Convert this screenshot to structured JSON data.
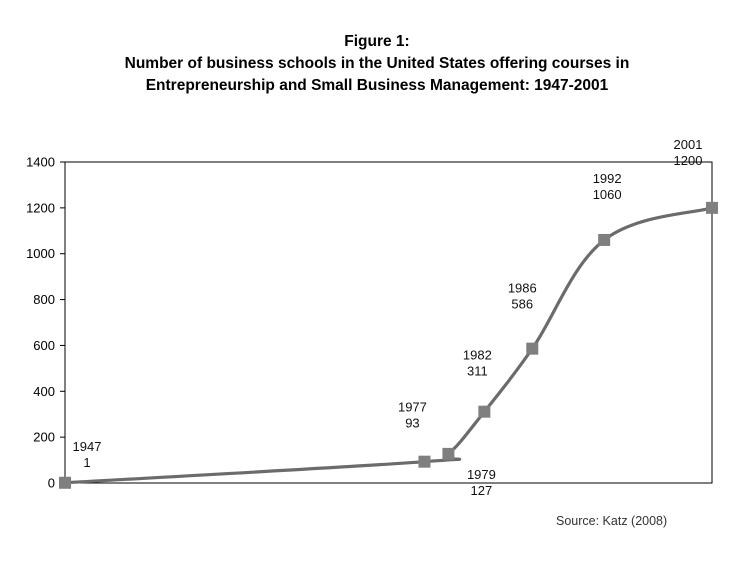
{
  "title": {
    "line1": "Figure 1:",
    "line2": "Number of business schools in the United States offering courses in",
    "line3": "Entrepreneurship and Small Business Management: 1947-2001"
  },
  "source": "Source: Katz (2008)",
  "colors": {
    "line": "#6b6b6b",
    "marker": "#7f7f7f",
    "axis": "#000000"
  },
  "chart_data": {
    "type": "line",
    "x": [
      1947,
      1977,
      1979,
      1982,
      1986,
      1992,
      2001
    ],
    "values": [
      1,
      93,
      127,
      311,
      586,
      1060,
      1200
    ],
    "point_labels": [
      {
        "year": "1947",
        "value": "1",
        "pos": "above"
      },
      {
        "year": "1977",
        "value": "93",
        "pos": "above"
      },
      {
        "year": "1979",
        "value": "127",
        "pos": "below"
      },
      {
        "year": "1982",
        "value": "311",
        "pos": "above"
      },
      {
        "year": "1986",
        "value": "586",
        "pos": "above"
      },
      {
        "year": "1992",
        "value": "1060",
        "pos": "above"
      },
      {
        "year": "2001",
        "value": "1200",
        "pos": "above"
      }
    ],
    "ylim": [
      0,
      1400
    ],
    "xlim": [
      1947,
      2001
    ],
    "yticks": [
      0,
      200,
      400,
      600,
      800,
      1000,
      1200,
      1400
    ],
    "xlabel": "",
    "ylabel": "",
    "grid": false,
    "legend": "none"
  }
}
